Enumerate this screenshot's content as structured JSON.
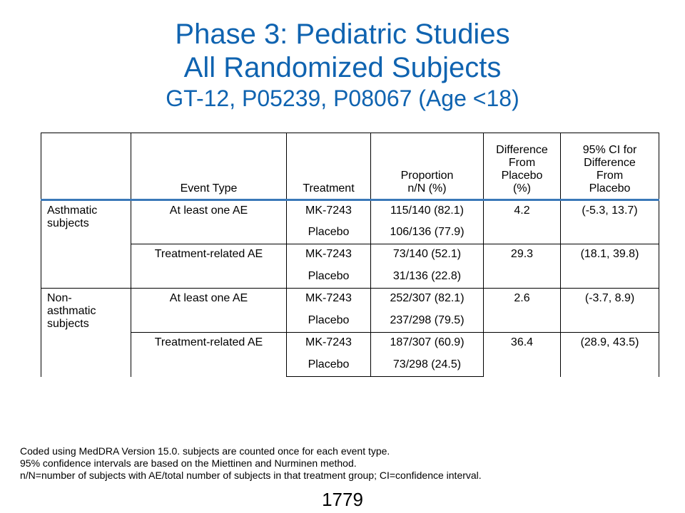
{
  "title": {
    "line1": "Phase 3: Pediatric Studies",
    "line2": "All Randomized Subjects",
    "line3": "GT-12, P05239, P08067 (Age <18)"
  },
  "table": {
    "headers": {
      "group": "",
      "event_type": "Event Type",
      "treatment": "Treatment",
      "proportion_l1": "Proportion",
      "proportion_l2": "n/N (%)",
      "difference_l1": "Difference",
      "difference_l2": "From",
      "difference_l3": "Placebo",
      "difference_l4": "(%)",
      "ci_l1": "95% CI for",
      "ci_l2": "Difference",
      "ci_l3": "From",
      "ci_l4": "Placebo"
    },
    "groups": [
      {
        "label_l1": "Asthmatic",
        "label_l2": "subjects",
        "label_l3": "",
        "events": [
          {
            "event": "At least one AE",
            "difference": "4.2",
            "ci": "(-5.3, 13.7)",
            "rows": [
              {
                "treatment": "MK-7243",
                "proportion": "115/140 (82.1)"
              },
              {
                "treatment": "Placebo",
                "proportion": "106/136 (77.9)"
              }
            ]
          },
          {
            "event": "Treatment-related  AE",
            "difference": "29.3",
            "ci": "(18.1, 39.8)",
            "rows": [
              {
                "treatment": "MK-7243",
                "proportion": "73/140 (52.1)"
              },
              {
                "treatment": "Placebo",
                "proportion": "31/136 (22.8)"
              }
            ]
          }
        ]
      },
      {
        "label_l1": "Non-",
        "label_l2": "asthmatic",
        "label_l3": "subjects",
        "events": [
          {
            "event": "At least one AE",
            "difference": "2.6",
            "ci": "(-3.7, 8.9)",
            "rows": [
              {
                "treatment": "MK-7243",
                "proportion": "252/307 (82.1)"
              },
              {
                "treatment": "Placebo",
                "proportion": "237/298 (79.5)"
              }
            ]
          },
          {
            "event": "Treatment-related  AE",
            "difference": "36.4",
            "ci": "(28.9, 43.5)",
            "rows": [
              {
                "treatment": "MK-7243",
                "proportion": "187/307 (60.9)"
              },
              {
                "treatment": "Placebo",
                "proportion": "73/298 (24.5)"
              }
            ]
          }
        ]
      }
    ]
  },
  "footnotes": [
    "Coded using MedDRA Version 15.0. subjects are counted once for each event type.",
    "95% confidence intervals are based on the Miettinen and Nurminen method.",
    "n/N=number of subjects with AE/total number of subjects in that treatment group; CI=confidence interval."
  ],
  "page_number": "1779",
  "colors": {
    "title": "#0f63b0",
    "header_rule": "#3a78b8"
  }
}
